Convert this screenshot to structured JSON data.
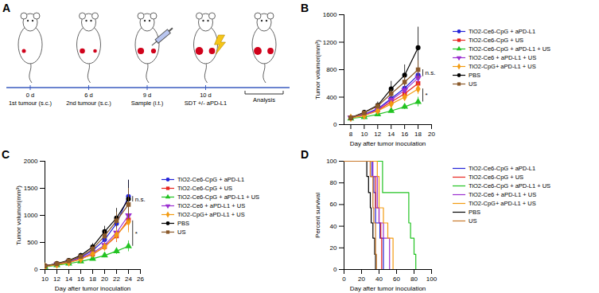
{
  "diagram": {
    "panel": "A",
    "steps": [
      {
        "day": "0 d",
        "label": "1st tumour (s.c.)"
      },
      {
        "day": "6 d",
        "label": "2nd tumour (s.c.)"
      },
      {
        "day": "9 d",
        "label": "Sample (i.t.)"
      },
      {
        "day": "10 d",
        "label": "SDT +/- aPD-L1"
      }
    ],
    "end_label": "Analysis"
  },
  "chart_data": [
    {
      "panel": "B",
      "type": "line",
      "legend": "right",
      "x_label": "Day after tumor inoculation",
      "y_label": "Tumor volumor(mm³)",
      "x": [
        8,
        10,
        12,
        14,
        16,
        18
      ],
      "xlim": [
        7,
        20
      ],
      "xticks": [
        8,
        10,
        12,
        14,
        16,
        18,
        20
      ],
      "ylim": [
        0,
        1600
      ],
      "yticks": [
        0,
        400,
        800,
        1200,
        1600
      ],
      "series": [
        {
          "name": "TiO2-Ce6-CpG + aPD-L1",
          "color": "#2323d8",
          "marker": "circle",
          "values": [
            100,
            150,
            230,
            380,
            530,
            720
          ],
          "errors": [
            10,
            15,
            30,
            50,
            70,
            110
          ]
        },
        {
          "name": "TiO2-Ce6-CpG + US",
          "color": "#e8251f",
          "marker": "square",
          "values": [
            100,
            140,
            210,
            330,
            450,
            600
          ],
          "errors": [
            10,
            15,
            25,
            40,
            60,
            90
          ]
        },
        {
          "name": "TiO2-Ce6-CpG + aPD-L1 + US",
          "color": "#22c322",
          "marker": "triangle",
          "values": [
            90,
            110,
            150,
            200,
            260,
            330
          ],
          "errors": [
            10,
            10,
            20,
            30,
            40,
            70
          ]
        },
        {
          "name": "TiO2-Ce6 + aPD-L1 + US",
          "color": "#9b30d0",
          "marker": "triangle-down",
          "values": [
            100,
            140,
            220,
            360,
            500,
            680
          ],
          "errors": [
            10,
            15,
            30,
            45,
            60,
            90
          ]
        },
        {
          "name": "TiO2-CpG+ aPD-L1 + US",
          "color": "#f39c12",
          "marker": "diamond",
          "values": [
            100,
            130,
            200,
            300,
            400,
            520
          ],
          "errors": [
            10,
            15,
            25,
            40,
            50,
            80
          ]
        },
        {
          "name": "PBS",
          "color": "#000000",
          "marker": "circle",
          "values": [
            100,
            180,
            280,
            520,
            720,
            1120
          ],
          "errors": [
            15,
            30,
            50,
            110,
            150,
            300
          ]
        },
        {
          "name": "US",
          "color": "#8b5a2b",
          "marker": "square",
          "values": [
            100,
            170,
            270,
            450,
            620,
            800
          ],
          "errors": [
            15,
            25,
            45,
            60,
            80,
            130
          ]
        }
      ],
      "annotations": [
        {
          "text": "n.s.",
          "x": 18.7,
          "y1": 800,
          "y2": 700
        },
        {
          "text": "*",
          "x": 18.7,
          "y1": 520,
          "y2": 330
        }
      ]
    },
    {
      "panel": "C",
      "type": "line",
      "legend": "right",
      "x_label": "Day after tumor inoculation",
      "y_label": "Tumor volumor(mm³)",
      "x": [
        10,
        12,
        14,
        16,
        18,
        20,
        22,
        24
      ],
      "xlim": [
        10,
        26
      ],
      "xticks": [
        10,
        12,
        14,
        16,
        18,
        20,
        22,
        24,
        26
      ],
      "ylim": [
        0,
        2000
      ],
      "yticks": [
        0,
        500,
        1000,
        1500,
        2000
      ],
      "series": [
        {
          "name": "TiO2-Ce6-CpG + aPD-L1",
          "color": "#2323d8",
          "marker": "circle",
          "values": [
            60,
            100,
            150,
            230,
            350,
            550,
            850,
            1350
          ],
          "errors": [
            10,
            15,
            20,
            30,
            50,
            80,
            150,
            300
          ]
        },
        {
          "name": "TiO2-Ce6-CpG + US",
          "color": "#e8251f",
          "marker": "square",
          "values": [
            60,
            90,
            130,
            200,
            280,
            420,
            620,
            920
          ],
          "errors": [
            10,
            10,
            20,
            30,
            40,
            70,
            120,
            200
          ]
        },
        {
          "name": "TiO2-Ce6-CpG + aPD-L1 + US",
          "color": "#22c322",
          "marker": "triangle",
          "values": [
            50,
            80,
            110,
            150,
            200,
            260,
            340,
            430
          ],
          "errors": [
            10,
            10,
            15,
            20,
            30,
            40,
            60,
            100
          ]
        },
        {
          "name": "TiO2-Ce6 + aPD-L1 + US",
          "color": "#9b30d0",
          "marker": "triangle-down",
          "values": [
            60,
            95,
            140,
            210,
            310,
            450,
            680,
            1000
          ],
          "errors": [
            10,
            15,
            20,
            30,
            45,
            70,
            130,
            220
          ]
        },
        {
          "name": "TiO2-CpG+ aPD-L1 + US",
          "color": "#f39c12",
          "marker": "diamond",
          "values": [
            55,
            90,
            130,
            190,
            290,
            420,
            640,
            880
          ],
          "errors": [
            10,
            10,
            20,
            30,
            40,
            70,
            120,
            200
          ]
        },
        {
          "name": "PBS",
          "color": "#000000",
          "marker": "circle",
          "values": [
            70,
            110,
            170,
            260,
            420,
            700,
            950,
            1300
          ],
          "errors": [
            10,
            15,
            25,
            40,
            60,
            100,
            180,
            350
          ]
        },
        {
          "name": "US",
          "color": "#8b5a2b",
          "marker": "square",
          "values": [
            65,
            105,
            160,
            240,
            380,
            620,
            900,
            1200
          ],
          "errors": [
            10,
            15,
            25,
            35,
            55,
            90,
            160,
            300
          ]
        }
      ],
      "annotations": [
        {
          "text": "n.s.",
          "x": 24.7,
          "y1": 1350,
          "y2": 1250
        },
        {
          "text": "*",
          "x": 24.7,
          "y1": 900,
          "y2": 430
        }
      ]
    },
    {
      "panel": "D",
      "type": "step",
      "legend": "right",
      "x_label": "Day after tumor inoculation",
      "y_label": "Percent survival",
      "xlim": [
        0,
        100
      ],
      "xticks": [
        0,
        20,
        40,
        60,
        80,
        100
      ],
      "ylim": [
        0,
        100
      ],
      "yticks": [
        0,
        20,
        40,
        60,
        80,
        100
      ],
      "series": [
        {
          "name": "TiO2-Ce6-CpG + aPD-L1",
          "color": "#2323d8",
          "x": [
            0,
            30,
            32,
            34,
            36,
            41,
            45
          ],
          "values": [
            100,
            100,
            86,
            71,
            43,
            29,
            0
          ]
        },
        {
          "name": "TiO2-Ce6-CpG + US",
          "color": "#e8251f",
          "x": [
            0,
            30,
            36,
            40,
            42,
            43
          ],
          "values": [
            100,
            86,
            57,
            43,
            29,
            0
          ]
        },
        {
          "name": "TiO2-Ce6-CpG + aPD-L1 + US",
          "color": "#22c322",
          "x": [
            0,
            44,
            74,
            76,
            80,
            82
          ],
          "values": [
            100,
            71,
            43,
            29,
            14,
            0
          ]
        },
        {
          "name": "TiO2-Ce6 + aPD-L1 + US",
          "color": "#9b30d0",
          "x": [
            0,
            33,
            38,
            40,
            45,
            52
          ],
          "values": [
            100,
            86,
            57,
            43,
            29,
            0
          ]
        },
        {
          "name": "TiO2-CpG+ aPD-L1 + US",
          "color": "#f39c12",
          "x": [
            0,
            38,
            40,
            45,
            50,
            56
          ],
          "values": [
            100,
            86,
            57,
            43,
            29,
            0
          ]
        },
        {
          "name": "PBS",
          "color": "#000000",
          "x": [
            0,
            26,
            28,
            30,
            31,
            33,
            35,
            36
          ],
          "values": [
            100,
            86,
            71,
            57,
            43,
            29,
            14,
            0
          ]
        },
        {
          "name": "US",
          "color": "#c8782a",
          "x": [
            0,
            30,
            33,
            34,
            36,
            37
          ],
          "values": [
            100,
            86,
            57,
            43,
            14,
            0
          ]
        }
      ]
    }
  ]
}
